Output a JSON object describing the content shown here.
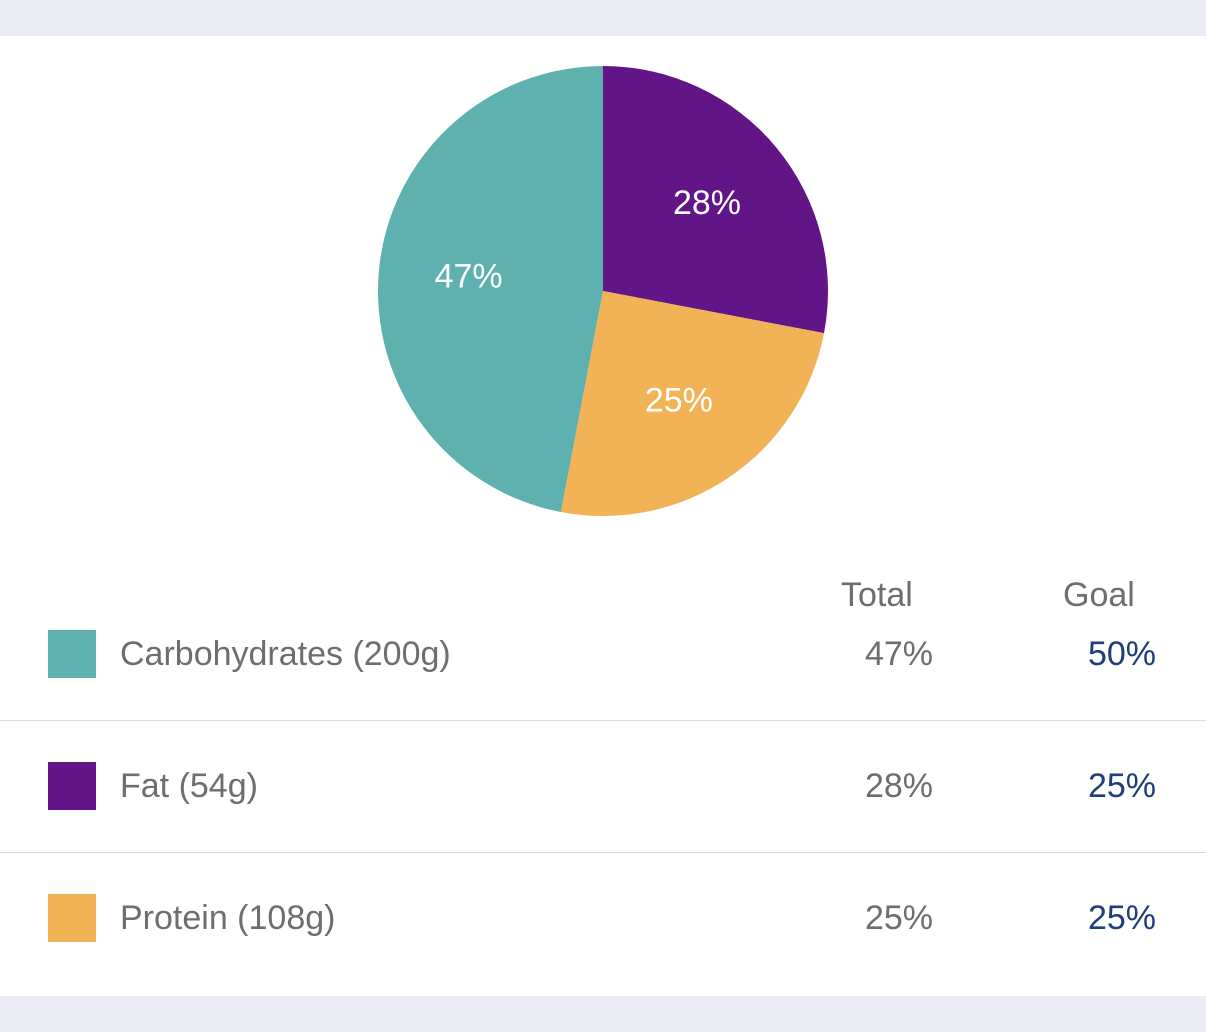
{
  "chart_data": {
    "type": "pie",
    "slices": [
      {
        "label": "Fat",
        "value": 28,
        "label_text": "28%",
        "color": "#621587"
      },
      {
        "label": "Protein",
        "value": 25,
        "label_text": "25%",
        "color": "#f2b356"
      },
      {
        "label": "Carbohydrates",
        "value": 47,
        "label_text": "47%",
        "color": "#5eb1ae"
      }
    ]
  },
  "table": {
    "headers": {
      "total": "Total",
      "goal": "Goal"
    },
    "rows": [
      {
        "label": "Carbohydrates (200g)",
        "total": "47%",
        "goal": "50%",
        "color": "#5eb1ae"
      },
      {
        "label": "Fat (54g)",
        "total": "28%",
        "goal": "25%",
        "color": "#621587"
      },
      {
        "label": "Protein (108g)",
        "total": "25%",
        "goal": "25%",
        "color": "#f2b356"
      }
    ]
  }
}
